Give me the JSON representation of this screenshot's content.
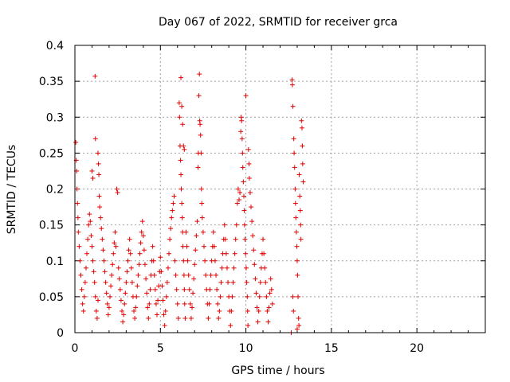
{
  "chart_data": {
    "type": "scatter",
    "title": "Day 067 of 2022, SRMTID for receiver grca",
    "xlabel": "GPS time / hours",
    "ylabel": "SRMTID / TECUs",
    "xlim": [
      0,
      24
    ],
    "ylim": [
      0,
      0.4
    ],
    "x_ticks": [
      "0",
      "5",
      "10",
      "15",
      "20"
    ],
    "y_ticks": [
      "0",
      "0.05",
      "0.1",
      "0.15",
      "0.2",
      "0.25",
      "0.3",
      "0.35",
      "0.4"
    ],
    "grid": true,
    "marker": "+",
    "color": "#e00000",
    "series": [
      {
        "points": [
          [
            0.05,
            0.265
          ],
          [
            0.08,
            0.24
          ],
          [
            0.1,
            0.225
          ],
          [
            0.12,
            0.2
          ],
          [
            0.15,
            0.18
          ],
          [
            0.18,
            0.16
          ],
          [
            0.2,
            0.14
          ],
          [
            0.25,
            0.12
          ],
          [
            0.3,
            0.1
          ],
          [
            0.35,
            0.08
          ],
          [
            0.4,
            0.06
          ],
          [
            0.45,
            0.04
          ],
          [
            0.5,
            0.03
          ],
          [
            0.55,
            0.05
          ],
          [
            0.6,
            0.07
          ],
          [
            0.65,
            0.09
          ],
          [
            0.7,
            0.11
          ],
          [
            0.75,
            0.13
          ],
          [
            0.8,
            0.15
          ],
          [
            0.85,
            0.165
          ],
          [
            0.9,
            0.155
          ],
          [
            0.95,
            0.135
          ],
          [
            1.0,
            0.12
          ],
          [
            1.05,
            0.1
          ],
          [
            1.1,
            0.085
          ],
          [
            1.15,
            0.07
          ],
          [
            1.2,
            0.05
          ],
          [
            1.25,
            0.03
          ],
          [
            1.3,
            0.02
          ],
          [
            1.35,
            0.045
          ],
          [
            1.18,
            0.357
          ],
          [
            1.2,
            0.27
          ],
          [
            1.0,
            0.225
          ],
          [
            1.05,
            0.215
          ],
          [
            1.35,
            0.25
          ],
          [
            1.38,
            0.235
          ],
          [
            1.4,
            0.22
          ],
          [
            1.42,
            0.19
          ],
          [
            1.45,
            0.175
          ],
          [
            1.5,
            0.16
          ],
          [
            1.55,
            0.145
          ],
          [
            1.6,
            0.13
          ],
          [
            1.65,
            0.115
          ],
          [
            1.7,
            0.1
          ],
          [
            1.75,
            0.085
          ],
          [
            1.8,
            0.07
          ],
          [
            1.85,
            0.055
          ],
          [
            1.9,
            0.04
          ],
          [
            1.95,
            0.025
          ],
          [
            2.0,
            0.035
          ],
          [
            2.05,
            0.05
          ],
          [
            2.1,
            0.065
          ],
          [
            2.15,
            0.08
          ],
          [
            2.2,
            0.095
          ],
          [
            2.25,
            0.11
          ],
          [
            2.3,
            0.125
          ],
          [
            2.35,
            0.14
          ],
          [
            2.4,
            0.12
          ],
          [
            2.45,
            0.2
          ],
          [
            2.5,
            0.195
          ],
          [
            2.55,
            0.09
          ],
          [
            2.6,
            0.075
          ],
          [
            2.65,
            0.06
          ],
          [
            2.7,
            0.045
          ],
          [
            2.75,
            0.03
          ],
          [
            2.8,
            0.015
          ],
          [
            2.85,
            0.025
          ],
          [
            2.9,
            0.04
          ],
          [
            2.95,
            0.055
          ],
          [
            3.0,
            0.07
          ],
          [
            3.05,
            0.085
          ],
          [
            3.1,
            0.1
          ],
          [
            3.15,
            0.115
          ],
          [
            3.2,
            0.13
          ],
          [
            3.25,
            0.11
          ],
          [
            3.3,
            0.09
          ],
          [
            3.35,
            0.07
          ],
          [
            3.4,
            0.05
          ],
          [
            3.45,
            0.03
          ],
          [
            3.5,
            0.02
          ],
          [
            3.55,
            0.035
          ],
          [
            3.6,
            0.05
          ],
          [
            3.65,
            0.065
          ],
          [
            3.7,
            0.08
          ],
          [
            3.75,
            0.095
          ],
          [
            3.8,
            0.11
          ],
          [
            3.85,
            0.125
          ],
          [
            3.9,
            0.14
          ],
          [
            3.95,
            0.155
          ],
          [
            4.0,
            0.135
          ],
          [
            4.05,
            0.115
          ],
          [
            4.1,
            0.095
          ],
          [
            4.15,
            0.075
          ],
          [
            4.2,
            0.055
          ],
          [
            4.25,
            0.035
          ],
          [
            4.3,
            0.02
          ],
          [
            4.35,
            0.04
          ],
          [
            4.4,
            0.06
          ],
          [
            4.45,
            0.08
          ],
          [
            4.5,
            0.1
          ],
          [
            4.55,
            0.12
          ],
          [
            4.6,
            0.1
          ],
          [
            4.65,
            0.08
          ],
          [
            4.7,
            0.06
          ],
          [
            4.75,
            0.04
          ],
          [
            4.8,
            0.025
          ],
          [
            4.85,
            0.045
          ],
          [
            4.9,
            0.065
          ],
          [
            4.95,
            0.085
          ],
          [
            5.0,
            0.105
          ],
          [
            5.05,
            0.085
          ],
          [
            5.1,
            0.065
          ],
          [
            5.15,
            0.045
          ],
          [
            5.2,
            0.025
          ],
          [
            5.25,
            0.01
          ],
          [
            5.3,
            0.03
          ],
          [
            5.35,
            0.05
          ],
          [
            5.4,
            0.07
          ],
          [
            5.45,
            0.09
          ],
          [
            5.5,
            0.11
          ],
          [
            5.55,
            0.13
          ],
          [
            5.6,
            0.145
          ],
          [
            5.65,
            0.16
          ],
          [
            5.7,
            0.17
          ],
          [
            5.75,
            0.18
          ],
          [
            5.8,
            0.19
          ],
          [
            5.85,
            0.1
          ],
          [
            5.9,
            0.08
          ],
          [
            5.95,
            0.06
          ],
          [
            6.0,
            0.04
          ],
          [
            6.05,
            0.02
          ],
          [
            6.1,
            0.32
          ],
          [
            6.12,
            0.3
          ],
          [
            6.15,
            0.26
          ],
          [
            6.18,
            0.24
          ],
          [
            6.2,
            0.22
          ],
          [
            6.22,
            0.2
          ],
          [
            6.25,
            0.18
          ],
          [
            6.28,
            0.16
          ],
          [
            6.3,
            0.14
          ],
          [
            6.32,
            0.12
          ],
          [
            6.35,
            0.1
          ],
          [
            6.38,
            0.08
          ],
          [
            6.4,
            0.06
          ],
          [
            6.42,
            0.04
          ],
          [
            6.45,
            0.02
          ],
          [
            6.2,
            0.355
          ],
          [
            6.25,
            0.315
          ],
          [
            6.3,
            0.29
          ],
          [
            6.35,
            0.26
          ],
          [
            6.4,
            0.255
          ],
          [
            6.5,
            0.14
          ],
          [
            6.55,
            0.12
          ],
          [
            6.6,
            0.1
          ],
          [
            6.65,
            0.08
          ],
          [
            6.7,
            0.06
          ],
          [
            6.75,
            0.04
          ],
          [
            6.8,
            0.02
          ],
          [
            6.85,
            0.035
          ],
          [
            6.9,
            0.055
          ],
          [
            6.95,
            0.075
          ],
          [
            7.0,
            0.095
          ],
          [
            7.05,
            0.115
          ],
          [
            7.1,
            0.135
          ],
          [
            7.15,
            0.155
          ],
          [
            7.2,
            0.23
          ],
          [
            7.22,
            0.25
          ],
          [
            7.25,
            0.33
          ],
          [
            7.28,
            0.36
          ],
          [
            7.3,
            0.295
          ],
          [
            7.32,
            0.29
          ],
          [
            7.35,
            0.275
          ],
          [
            7.38,
            0.25
          ],
          [
            7.4,
            0.2
          ],
          [
            7.42,
            0.18
          ],
          [
            7.45,
            0.16
          ],
          [
            7.5,
            0.14
          ],
          [
            7.55,
            0.12
          ],
          [
            7.6,
            0.1
          ],
          [
            7.65,
            0.08
          ],
          [
            7.7,
            0.06
          ],
          [
            7.75,
            0.04
          ],
          [
            7.8,
            0.02
          ],
          [
            7.85,
            0.04
          ],
          [
            7.9,
            0.06
          ],
          [
            7.95,
            0.08
          ],
          [
            8.0,
            0.1
          ],
          [
            8.05,
            0.12
          ],
          [
            8.1,
            0.14
          ],
          [
            8.15,
            0.12
          ],
          [
            8.2,
            0.1
          ],
          [
            8.25,
            0.08
          ],
          [
            8.3,
            0.06
          ],
          [
            8.35,
            0.04
          ],
          [
            8.4,
            0.02
          ],
          [
            8.45,
            0.03
          ],
          [
            8.5,
            0.05
          ],
          [
            8.55,
            0.07
          ],
          [
            8.6,
            0.09
          ],
          [
            8.65,
            0.11
          ],
          [
            8.7,
            0.13
          ],
          [
            8.75,
            0.15
          ],
          [
            8.8,
            0.13
          ],
          [
            8.85,
            0.11
          ],
          [
            8.9,
            0.09
          ],
          [
            8.95,
            0.07
          ],
          [
            9.0,
            0.05
          ],
          [
            9.05,
            0.03
          ],
          [
            9.1,
            0.01
          ],
          [
            9.15,
            0.03
          ],
          [
            9.2,
            0.05
          ],
          [
            9.25,
            0.07
          ],
          [
            9.3,
            0.09
          ],
          [
            9.35,
            0.11
          ],
          [
            9.4,
            0.13
          ],
          [
            9.45,
            0.15
          ],
          [
            9.5,
            0.18
          ],
          [
            9.55,
            0.2
          ],
          [
            9.6,
            0.185
          ],
          [
            9.65,
            0.195
          ],
          [
            9.7,
            0.28
          ],
          [
            9.72,
            0.3
          ],
          [
            9.75,
            0.295
          ],
          [
            9.78,
            0.27
          ],
          [
            9.8,
            0.25
          ],
          [
            9.82,
            0.23
          ],
          [
            9.85,
            0.21
          ],
          [
            9.88,
            0.19
          ],
          [
            9.9,
            0.17
          ],
          [
            9.92,
            0.15
          ],
          [
            9.95,
            0.13
          ],
          [
            9.98,
            0.11
          ],
          [
            10.0,
            0.33
          ],
          [
            10.02,
            0.09
          ],
          [
            10.05,
            0.07
          ],
          [
            10.08,
            0.05
          ],
          [
            10.1,
            0.03
          ],
          [
            10.12,
            0.01
          ],
          [
            10.15,
            0.255
          ],
          [
            10.18,
            0.235
          ],
          [
            10.2,
            0.215
          ],
          [
            10.25,
            0.195
          ],
          [
            10.3,
            0.175
          ],
          [
            10.35,
            0.155
          ],
          [
            10.4,
            0.135
          ],
          [
            10.45,
            0.115
          ],
          [
            10.5,
            0.095
          ],
          [
            10.55,
            0.075
          ],
          [
            10.6,
            0.055
          ],
          [
            10.65,
            0.035
          ],
          [
            10.7,
            0.015
          ],
          [
            10.75,
            0.03
          ],
          [
            10.8,
            0.05
          ],
          [
            10.85,
            0.07
          ],
          [
            10.9,
            0.09
          ],
          [
            10.95,
            0.11
          ],
          [
            11.0,
            0.13
          ],
          [
            11.05,
            0.11
          ],
          [
            11.1,
            0.09
          ],
          [
            11.15,
            0.07
          ],
          [
            11.2,
            0.05
          ],
          [
            11.25,
            0.03
          ],
          [
            11.3,
            0.015
          ],
          [
            11.35,
            0.035
          ],
          [
            11.4,
            0.055
          ],
          [
            11.45,
            0.075
          ],
          [
            11.5,
            0.06
          ],
          [
            11.55,
            0.04
          ],
          [
            12.7,
            0.352
          ],
          [
            12.72,
            0.345
          ],
          [
            12.75,
            0.315
          ],
          [
            12.8,
            0.27
          ],
          [
            12.82,
            0.25
          ],
          [
            12.85,
            0.23
          ],
          [
            12.88,
            0.2
          ],
          [
            12.9,
            0.18
          ],
          [
            12.92,
            0.16
          ],
          [
            12.95,
            0.14
          ],
          [
            12.98,
            0.12
          ],
          [
            13.0,
            0.1
          ],
          [
            13.02,
            0.08
          ],
          [
            13.05,
            0.05
          ],
          [
            13.08,
            0.02
          ],
          [
            13.1,
            0.01
          ],
          [
            13.12,
            0.22
          ],
          [
            13.15,
            0.19
          ],
          [
            13.18,
            0.17
          ],
          [
            13.2,
            0.15
          ],
          [
            13.22,
            0.13
          ],
          [
            13.25,
            0.295
          ],
          [
            13.28,
            0.285
          ],
          [
            13.3,
            0.26
          ],
          [
            13.32,
            0.235
          ],
          [
            13.35,
            0.21
          ],
          [
            12.75,
            0.05
          ],
          [
            12.78,
            0.03
          ],
          [
            13.0,
            0.005
          ],
          [
            12.65,
            0.0
          ]
        ]
      }
    ]
  }
}
